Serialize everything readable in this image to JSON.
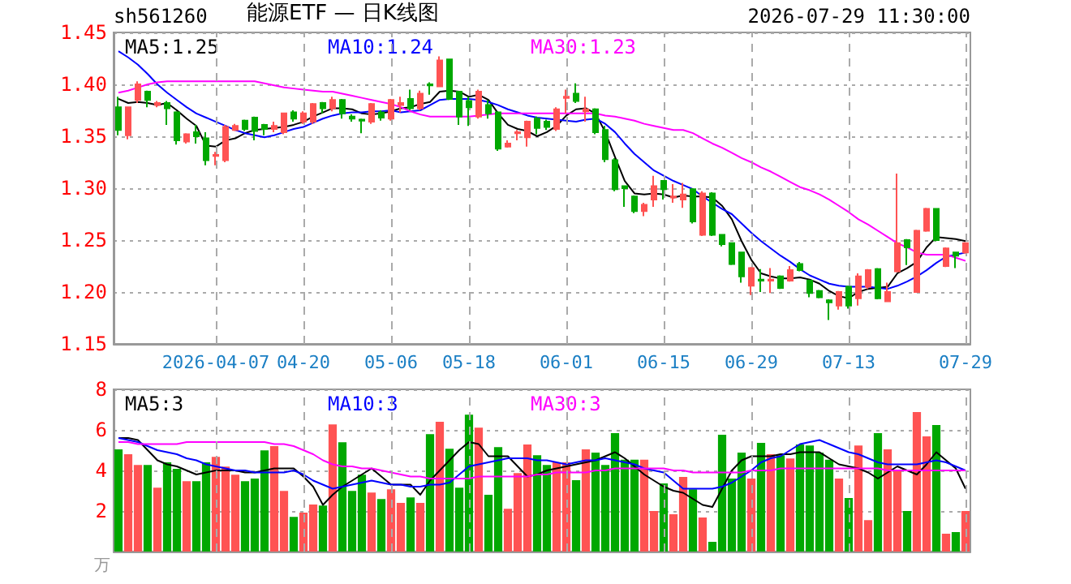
{
  "chart_data": [
    {
      "type": "candlestick",
      "title": "能源ETF — 日K线图",
      "subtitle": "sh561260",
      "annotations": [
        "2026-07-29 11:30:00"
      ],
      "categories": [
        null,
        null,
        null,
        null,
        null,
        null,
        null,
        null,
        null,
        null,
        "2026-04-07",
        null,
        null,
        null,
        null,
        null,
        null,
        null,
        null,
        "04-20",
        null,
        null,
        null,
        null,
        null,
        null,
        null,
        null,
        "05-06",
        null,
        null,
        null,
        null,
        null,
        null,
        null,
        "05-18",
        null,
        null,
        null,
        null,
        null,
        null,
        null,
        null,
        null,
        "06-01",
        null,
        null,
        null,
        null,
        null,
        null,
        null,
        null,
        null,
        "06-15",
        null,
        null,
        null,
        null,
        null,
        null,
        null,
        null,
        "06-29",
        null,
        null,
        null,
        null,
        null,
        null,
        null,
        null,
        null,
        "07-13",
        null,
        null,
        null,
        null,
        null,
        null,
        null,
        null,
        null,
        null,
        null,
        "07-29"
      ],
      "ylim": [
        1.15,
        1.45
      ],
      "yticks": [
        {
          "value": 1.15,
          "label": "1.15"
        },
        {
          "value": 1.2,
          "label": "1.20"
        },
        {
          "value": 1.25,
          "label": "1.25"
        },
        {
          "value": 1.3,
          "label": "1.30"
        },
        {
          "value": 1.35,
          "label": "1.35"
        },
        {
          "value": 1.4,
          "label": "1.40"
        },
        {
          "value": 1.45,
          "label": "1.45"
        }
      ],
      "grid": true,
      "legend": "top left",
      "marker": "none",
      "series": [
        {
          "ohlc": [
            [
              1.378,
              1.388,
              1.351,
              1.356
            ],
            [
              1.351,
              1.378,
              1.347,
              1.378
            ],
            [
              1.385,
              1.403,
              1.382,
              1.4
            ],
            [
              1.393,
              1.394,
              1.378,
              1.385
            ],
            [
              1.38,
              1.384,
              1.378,
              1.382
            ],
            [
              1.382,
              1.384,
              1.361,
              1.377
            ],
            [
              1.373,
              1.374,
              1.342,
              1.346
            ],
            [
              1.345,
              1.353,
              1.343,
              1.352
            ],
            [
              1.354,
              1.361,
              1.343,
              1.35
            ],
            [
              1.348,
              1.354,
              1.322,
              1.327
            ],
            [
              1.331,
              1.335,
              1.322,
              1.332
            ],
            [
              1.327,
              1.361,
              1.325,
              1.359
            ],
            [
              1.356,
              1.362,
              1.355,
              1.36
            ],
            [
              1.365,
              1.366,
              1.355,
              1.357
            ],
            [
              1.368,
              1.369,
              1.346,
              1.355
            ],
            [
              1.361,
              1.362,
              1.351,
              1.357
            ],
            [
              1.357,
              1.364,
              1.354,
              1.36
            ],
            [
              1.354,
              1.372,
              1.352,
              1.372
            ],
            [
              1.373,
              1.375,
              1.364,
              1.367
            ],
            [
              1.364,
              1.374,
              1.362,
              1.372
            ],
            [
              1.364,
              1.382,
              1.362,
              1.381
            ],
            [
              1.382,
              1.383,
              1.372,
              1.377
            ],
            [
              1.377,
              1.388,
              1.374,
              1.385
            ],
            [
              1.385,
              1.386,
              1.367,
              1.372
            ],
            [
              1.369,
              1.371,
              1.364,
              1.367
            ],
            [
              1.366,
              1.367,
              1.353,
              1.365
            ],
            [
              1.364,
              1.382,
              1.362,
              1.381
            ],
            [
              1.373,
              1.375,
              1.365,
              1.368
            ],
            [
              1.367,
              1.386,
              1.365,
              1.385
            ],
            [
              1.38,
              1.388,
              1.373,
              1.382
            ],
            [
              1.386,
              1.395,
              1.375,
              1.377
            ],
            [
              1.377,
              1.394,
              1.375,
              1.391
            ],
            [
              1.4,
              1.402,
              1.39,
              1.399
            ],
            [
              1.398,
              1.427,
              1.398,
              1.423
            ],
            [
              1.424,
              1.424,
              1.385,
              1.386
            ],
            [
              1.393,
              1.393,
              1.361,
              1.369
            ],
            [
              1.384,
              1.388,
              1.36,
              1.378
            ],
            [
              1.369,
              1.395,
              1.367,
              1.393
            ],
            [
              1.38,
              1.385,
              1.367,
              1.372
            ],
            [
              1.373,
              1.374,
              1.336,
              1.338
            ],
            [
              1.34,
              1.346,
              1.339,
              1.343
            ],
            [
              1.353,
              1.356,
              1.346,
              1.354
            ],
            [
              1.349,
              1.365,
              1.34,
              1.364
            ],
            [
              1.367,
              1.369,
              1.352,
              1.358
            ],
            [
              1.364,
              1.366,
              1.356,
              1.359
            ],
            [
              1.357,
              1.378,
              1.355,
              1.376
            ],
            [
              1.387,
              1.395,
              1.372,
              1.388
            ],
            [
              1.391,
              1.401,
              1.382,
              1.384
            ],
            [
              1.374,
              1.388,
              1.364,
              1.376
            ],
            [
              1.376,
              1.377,
              1.352,
              1.354
            ],
            [
              1.356,
              1.36,
              1.325,
              1.328
            ],
            [
              1.327,
              1.329,
              1.297,
              1.299
            ],
            [
              1.302,
              1.302,
              1.282,
              1.3
            ],
            [
              1.292,
              1.293,
              1.276,
              1.278
            ],
            [
              1.278,
              1.286,
              1.273,
              1.284
            ],
            [
              1.289,
              1.312,
              1.282,
              1.302
            ],
            [
              1.307,
              1.307,
              1.289,
              1.299
            ],
            [
              1.291,
              1.304,
              1.286,
              1.292
            ],
            [
              1.289,
              1.305,
              1.281,
              1.294
            ],
            [
              1.299,
              1.3,
              1.266,
              1.268
            ],
            [
              1.255,
              1.297,
              1.254,
              1.295
            ],
            [
              1.295,
              1.296,
              1.254,
              1.255
            ],
            [
              1.255,
              1.255,
              1.244,
              1.246
            ],
            [
              1.247,
              1.247,
              1.226,
              1.227
            ],
            [
              1.238,
              1.238,
              1.209,
              1.215
            ],
            [
              1.206,
              1.224,
              1.197,
              1.223
            ],
            [
              1.212,
              1.222,
              1.2,
              1.211
            ],
            [
              1.211,
              1.223,
              1.199,
              1.212
            ],
            [
              1.215,
              1.216,
              1.203,
              1.204
            ],
            [
              1.211,
              1.225,
              1.21,
              1.221
            ],
            [
              1.227,
              1.229,
              1.22,
              1.221
            ],
            [
              1.211,
              1.212,
              1.195,
              1.199
            ],
            [
              1.201,
              1.202,
              1.194,
              1.195
            ],
            [
              1.192,
              1.193,
              1.173,
              1.19
            ],
            [
              1.187,
              1.201,
              1.183,
              1.2
            ],
            [
              1.205,
              1.206,
              1.184,
              1.187
            ],
            [
              1.194,
              1.218,
              1.187,
              1.215
            ],
            [
              1.205,
              1.222,
              1.203,
              1.221
            ],
            [
              1.222,
              1.223,
              1.193,
              1.194
            ],
            [
              1.191,
              1.209,
              1.191,
              1.2
            ],
            [
              1.22,
              1.314,
              1.219,
              1.247
            ],
            [
              1.25,
              1.251,
              1.226,
              1.243
            ],
            [
              1.2,
              1.26,
              1.2,
              1.259
            ],
            [
              1.259,
              1.281,
              1.258,
              1.28
            ],
            [
              1.28,
              1.28,
              1.249,
              1.25
            ],
            [
              1.225,
              1.243,
              1.224,
              1.242
            ],
            [
              1.238,
              1.238,
              1.223,
              1.235
            ],
            [
              1.238,
              1.248,
              1.237,
              1.247
            ]
          ],
          "colors": [
            "#00a800",
            "#ff5353",
            "#ff5353",
            "#00a800",
            "#ff5353",
            "#00a800",
            "#00a800",
            "#ff5353",
            "#00a800",
            "#00a800",
            "#ff5353",
            "#ff5353",
            "#ff5353",
            "#00a800",
            "#00a800",
            "#00a800",
            "#ff5353",
            "#ff5353",
            "#00a800",
            "#ff5353",
            "#ff5353",
            "#00a800",
            "#ff5353",
            "#00a800",
            "#00a800",
            "#00a800",
            "#ff5353",
            "#00a800",
            "#ff5353",
            "#ff5353",
            "#00a800",
            "#ff5353",
            "#00a800",
            "#ff5353",
            "#00a800",
            "#00a800",
            "#00a800",
            "#ff5353",
            "#00a800",
            "#00a800",
            "#ff5353",
            "#ff5353",
            "#ff5353",
            "#00a800",
            "#00a800",
            "#ff5353",
            "#ff5353",
            "#00a800",
            "#ff5353",
            "#00a800",
            "#00a800",
            "#00a800",
            "#00a800",
            "#00a800",
            "#ff5353",
            "#ff5353",
            "#00a800",
            "#ff5353",
            "#ff5353",
            "#00a800",
            "#ff5353",
            "#00a800",
            "#00a800",
            "#00a800",
            "#00a800",
            "#ff5353",
            "#00a800",
            "#ff5353",
            "#00a800",
            "#ff5353",
            "#00a800",
            "#00a800",
            "#00a800",
            "#00a800",
            "#ff5353",
            "#00a800",
            "#ff5353",
            "#ff5353",
            "#00a800",
            "#ff5353",
            "#ff5353",
            "#00a800",
            "#ff5353",
            "#ff5353",
            "#00a800",
            "#ff5353",
            "#00a800",
            "#ff5353"
          ]
        },
        {
          "type": "line",
          "name": "MA5:1.25",
          "color": "#000000",
          "values": [
            1.386,
            1.382,
            1.383,
            1.382,
            1.38,
            1.382,
            1.375,
            1.367,
            1.36,
            1.341,
            1.34,
            1.346,
            1.348,
            1.353,
            1.356,
            1.357,
            1.358,
            1.359,
            1.361,
            1.364,
            1.369,
            1.373,
            1.377,
            1.377,
            1.376,
            1.372,
            1.371,
            1.372,
            1.374,
            1.377,
            1.378,
            1.381,
            1.383,
            1.393,
            1.394,
            1.393,
            1.388,
            1.39,
            1.385,
            1.372,
            1.361,
            1.357,
            1.355,
            1.35,
            1.354,
            1.36,
            1.37,
            1.376,
            1.377,
            1.372,
            1.354,
            1.33,
            1.307,
            1.295,
            1.294,
            1.295,
            1.294,
            1.291,
            1.293,
            1.292,
            1.292,
            1.291,
            1.283,
            1.27,
            1.249,
            1.231,
            1.218,
            1.215,
            1.213,
            1.213,
            1.214,
            1.212,
            1.208,
            1.201,
            1.196,
            1.194,
            1.2,
            1.203,
            1.204,
            1.205,
            1.218,
            1.223,
            1.229,
            1.243,
            1.253,
            1.252,
            1.251,
            1.249
          ]
        },
        {
          "type": "line",
          "name": "MA10:1.24",
          "color": "#0000ff",
          "values": [
            1.432,
            1.426,
            1.419,
            1.41,
            1.4,
            1.392,
            1.385,
            1.378,
            1.372,
            1.368,
            1.364,
            1.36,
            1.356,
            1.353,
            1.351,
            1.349,
            1.351,
            1.354,
            1.357,
            1.359,
            1.363,
            1.367,
            1.37,
            1.372,
            1.373,
            1.373,
            1.374,
            1.374,
            1.375,
            1.373,
            1.374,
            1.375,
            1.38,
            1.385,
            1.386,
            1.386,
            1.386,
            1.385,
            1.383,
            1.38,
            1.376,
            1.373,
            1.37,
            1.368,
            1.367,
            1.366,
            1.365,
            1.364,
            1.366,
            1.367,
            1.362,
            1.354,
            1.343,
            1.333,
            1.325,
            1.317,
            1.312,
            1.307,
            1.303,
            1.299,
            1.292,
            1.286,
            1.28,
            1.275,
            1.266,
            1.257,
            1.249,
            1.242,
            1.235,
            1.229,
            1.222,
            1.216,
            1.212,
            1.208,
            1.206,
            1.205,
            1.205,
            1.205,
            1.204,
            1.203,
            1.206,
            1.21,
            1.215,
            1.221,
            1.228,
            1.234,
            1.236,
            1.238
          ]
        },
        {
          "type": "line",
          "name": "MA30:1.23",
          "color": "#ff00ff",
          "values": [
            1.392,
            1.394,
            1.397,
            1.4,
            1.402,
            1.403,
            1.403,
            1.403,
            1.403,
            1.403,
            1.403,
            1.403,
            1.403,
            1.403,
            1.403,
            1.401,
            1.399,
            1.397,
            1.396,
            1.395,
            1.394,
            1.393,
            1.393,
            1.391,
            1.389,
            1.387,
            1.385,
            1.383,
            1.381,
            1.378,
            1.374,
            1.371,
            1.369,
            1.369,
            1.369,
            1.369,
            1.369,
            1.37,
            1.371,
            1.372,
            1.372,
            1.372,
            1.372,
            1.372,
            1.372,
            1.372,
            1.372,
            1.372,
            1.372,
            1.372,
            1.37,
            1.369,
            1.367,
            1.365,
            1.362,
            1.36,
            1.358,
            1.356,
            1.356,
            1.353,
            1.348,
            1.343,
            1.339,
            1.334,
            1.329,
            1.325,
            1.32,
            1.316,
            1.311,
            1.306,
            1.301,
            1.298,
            1.294,
            1.289,
            1.283,
            1.277,
            1.27,
            1.265,
            1.259,
            1.253,
            1.247,
            1.243,
            1.238,
            1.236,
            1.236,
            1.236,
            1.233,
            1.23
          ]
        }
      ]
    },
    {
      "type": "bar",
      "ylabel": "万",
      "tick_labels": "y",
      "categories": [
        null,
        null,
        null,
        null,
        null,
        null,
        null,
        null,
        null,
        null,
        null,
        null,
        null,
        null,
        null,
        null,
        null,
        null,
        null,
        null,
        null,
        null,
        null,
        null,
        null,
        null,
        null,
        null,
        null,
        null,
        null,
        null,
        null,
        null,
        null,
        null,
        null,
        null,
        null,
        null,
        null,
        null,
        null,
        null,
        null,
        null,
        null,
        null,
        null,
        null,
        null,
        null,
        null,
        null,
        null,
        null,
        null,
        null,
        null,
        null,
        null,
        null,
        null,
        null,
        null,
        null,
        null,
        null,
        null,
        null,
        null,
        null,
        null,
        null,
        null,
        null,
        null,
        null,
        null,
        null,
        null,
        null,
        null,
        null,
        null,
        null,
        null,
        null
      ],
      "ylim": [
        0,
        8
      ],
      "yticks": [
        2,
        4,
        6,
        8
      ],
      "grid": true,
      "legend": "top left",
      "marker": "none",
      "series": [
        {
          "values": [
            5.04,
            4.8,
            4.27,
            4.27,
            3.15,
            4.4,
            4.08,
            3.47,
            3.47,
            4.4,
            4.67,
            4.19,
            3.79,
            3.47,
            3.6,
            4.99,
            5.2,
            2.99,
            1.71,
            1.92,
            2.32,
            2.27,
            6.27,
            5.39,
            2.99,
            3.79,
            2.91,
            2.59,
            3.07,
            2.4,
            2.67,
            2.4,
            5.79,
            6.4,
            5.07,
            3.15,
            6.75,
            6.11,
            2.8,
            5.15,
            2.11,
            3.87,
            5.28,
            4.75,
            4.27,
            4.4,
            4.4,
            3.52,
            5.04,
            4.88,
            4.27,
            5.84,
            4.53,
            4.53,
            4.53,
            2.0,
            3.36,
            1.84,
            3.68,
            3.07,
            1.68,
            0.48,
            5.76,
            3.6,
            4.88,
            3.6,
            5.36,
            4.8,
            4.75,
            4.59,
            5.28,
            5.23,
            4.88,
            4.53,
            3.6,
            2.64,
            5.23,
            1.55,
            5.84,
            5.04,
            4.0,
            2.0,
            6.88,
            5.68,
            6.24,
            0.88,
            0.96,
            2.0
          ],
          "colors": [
            "#00a800",
            "#ff5353",
            "#ff5353",
            "#00a800",
            "#ff5353",
            "#00a800",
            "#00a800",
            "#ff5353",
            "#00a800",
            "#00a800",
            "#ff5353",
            "#ff5353",
            "#ff5353",
            "#00a800",
            "#00a800",
            "#00a800",
            "#ff5353",
            "#ff5353",
            "#00a800",
            "#ff5353",
            "#ff5353",
            "#00a800",
            "#ff5353",
            "#00a800",
            "#00a800",
            "#00a800",
            "#ff5353",
            "#00a800",
            "#ff5353",
            "#ff5353",
            "#00a800",
            "#ff5353",
            "#00a800",
            "#ff5353",
            "#00a800",
            "#00a800",
            "#00a800",
            "#ff5353",
            "#00a800",
            "#00a800",
            "#ff5353",
            "#ff5353",
            "#ff5353",
            "#00a800",
            "#00a800",
            "#ff5353",
            "#ff5353",
            "#00a800",
            "#ff5353",
            "#00a800",
            "#00a800",
            "#00a800",
            "#00a800",
            "#00a800",
            "#ff5353",
            "#ff5353",
            "#00a800",
            "#ff5353",
            "#ff5353",
            "#00a800",
            "#ff5353",
            "#00a800",
            "#00a800",
            "#00a800",
            "#00a800",
            "#ff5353",
            "#00a800",
            "#ff5353",
            "#00a800",
            "#ff5353",
            "#00a800",
            "#00a800",
            "#00a800",
            "#00a800",
            "#ff5353",
            "#00a800",
            "#ff5353",
            "#ff5353",
            "#00a800",
            "#ff5353",
            "#ff5353",
            "#00a800",
            "#ff5353",
            "#ff5353",
            "#00a800",
            "#ff5353",
            "#00a800",
            "#ff5353"
          ]
        },
        {
          "type": "line",
          "name": "MA5:3",
          "color": "#000000",
          "values": [
            5.6,
            5.6,
            5.5,
            5.0,
            4.5,
            4.3,
            4.2,
            4.0,
            3.8,
            3.9,
            4.0,
            4.0,
            4.0,
            3.9,
            3.9,
            4.0,
            4.1,
            4.1,
            4.1,
            3.7,
            3.2,
            2.3,
            2.8,
            3.2,
            3.5,
            3.8,
            4.1,
            3.7,
            3.3,
            3.3,
            3.3,
            2.8,
            3.5,
            4.0,
            4.5,
            5.0,
            5.4,
            5.3,
            4.7,
            4.7,
            4.7,
            4.2,
            3.7,
            3.8,
            4.0,
            4.1,
            4.2,
            4.3,
            4.4,
            4.5,
            4.7,
            4.9,
            4.6,
            4.2,
            3.8,
            3.5,
            3.2,
            3.0,
            2.9,
            2.6,
            2.3,
            2.2,
            3.1,
            4.0,
            4.5,
            4.7,
            4.7,
            4.7,
            4.8,
            4.8,
            4.9,
            4.9,
            4.9,
            4.6,
            4.3,
            4.2,
            4.1,
            3.9,
            3.6,
            3.9,
            4.2,
            4.0,
            3.8,
            4.3,
            4.9,
            4.5,
            4.1,
            3.1
          ]
        },
        {
          "type": "line",
          "name": "MA10:3",
          "color": "#0000ff",
          "values": [
            5.6,
            5.5,
            5.4,
            5.2,
            5.0,
            4.9,
            4.8,
            4.6,
            4.5,
            4.3,
            4.2,
            4.1,
            4.0,
            4.0,
            3.9,
            3.9,
            3.9,
            3.9,
            4.0,
            3.8,
            3.5,
            3.3,
            3.1,
            3.2,
            3.3,
            3.4,
            3.5,
            3.4,
            3.3,
            3.3,
            3.2,
            3.2,
            3.3,
            3.3,
            3.4,
            3.8,
            4.2,
            4.3,
            4.4,
            4.5,
            4.6,
            4.6,
            4.6,
            4.5,
            4.5,
            4.4,
            4.3,
            4.4,
            4.5,
            4.5,
            4.6,
            4.5,
            4.4,
            4.3,
            4.1,
            4.0,
            3.9,
            3.5,
            3.1,
            3.1,
            3.1,
            3.1,
            3.2,
            3.4,
            3.7,
            4.0,
            4.4,
            4.6,
            4.7,
            5.0,
            5.3,
            5.4,
            5.5,
            5.3,
            5.1,
            4.9,
            4.8,
            4.6,
            4.4,
            4.3,
            4.3,
            4.3,
            4.3,
            4.4,
            4.5,
            4.4,
            4.2,
            4.0
          ]
        },
        {
          "type": "line",
          "name": "MA30:3",
          "color": "#ff00ff",
          "values": [
            5.4,
            5.4,
            5.3,
            5.3,
            5.3,
            5.3,
            5.3,
            5.4,
            5.4,
            5.4,
            5.4,
            5.4,
            5.4,
            5.4,
            5.4,
            5.4,
            5.3,
            5.3,
            5.2,
            5.0,
            4.8,
            4.5,
            4.3,
            4.2,
            4.2,
            4.1,
            4.1,
            4.0,
            3.9,
            3.8,
            3.7,
            3.7,
            3.6,
            3.6,
            3.6,
            3.6,
            3.6,
            3.7,
            3.7,
            3.7,
            3.7,
            3.7,
            3.7,
            3.8,
            3.8,
            3.9,
            3.9,
            3.9,
            3.9,
            4.0,
            4.0,
            4.1,
            4.1,
            4.1,
            4.1,
            4.1,
            4.1,
            4.0,
            4.0,
            3.9,
            3.9,
            3.9,
            3.9,
            3.9,
            3.9,
            4.0,
            4.0,
            4.0,
            4.1,
            4.1,
            4.1,
            4.1,
            4.1,
            4.1,
            4.1,
            4.1,
            4.1,
            4.1,
            4.1,
            4.0,
            4.0,
            4.0,
            4.0,
            4.0,
            4.0,
            4.0,
            4.0,
            4.0
          ]
        }
      ]
    }
  ]
}
